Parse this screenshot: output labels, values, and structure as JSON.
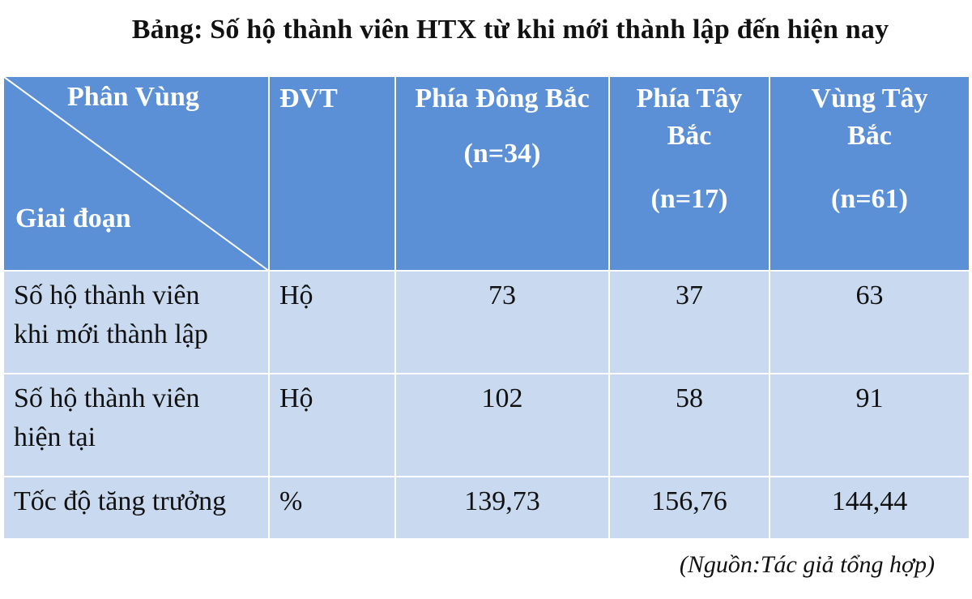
{
  "title": "Bảng: Số hộ thành viên HTX từ khi mới thành lập đến hiện nay",
  "header": {
    "corner_top": "Phân  Vùng",
    "corner_bottom": "Giai đoạn",
    "unit": "ĐVT",
    "col1_line1": "Phía Đông Bắc",
    "col1_line2": "(n=34)",
    "col2_line1": "Phía Tây",
    "col2_line2": "Bắc",
    "col2_line3": "(n=17)",
    "col3_line1": "Vùng Tây",
    "col3_line2": "Bắc",
    "col3_line3": "(n=61)"
  },
  "rows": [
    {
      "label_line1": "Số hộ thành viên",
      "label_line2": "khi mới thành lập",
      "unit": "Hộ",
      "values": [
        "73",
        "37",
        "63"
      ]
    },
    {
      "label_line1": "Số hộ thành viên",
      "label_line2": "hiện tại",
      "unit": "Hộ",
      "values": [
        "102",
        "58",
        "91"
      ]
    },
    {
      "label_line1": "Tốc độ tăng trưởng",
      "label_line2": "",
      "unit": "%",
      "values": [
        "139,73",
        "156,76",
        "144,44"
      ]
    }
  ],
  "source": "(Nguồn:Tác giả tổng hợp)",
  "colors": {
    "header_bg": "#5b8fd6",
    "body_bg": "#c9daf0"
  }
}
